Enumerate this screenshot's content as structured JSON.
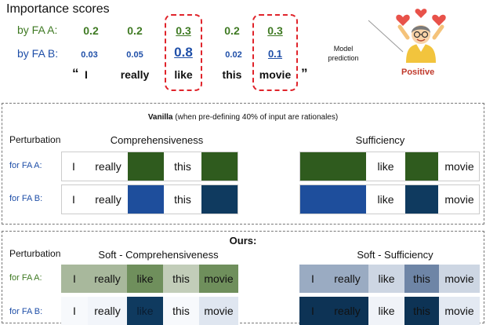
{
  "header": {
    "title": "Importance scores",
    "label_fa_a": "by FA  A:",
    "label_fa_b": "by FA  B:",
    "scores_a": [
      "0.2",
      "0.2",
      "0.3",
      "0.2",
      "0.3"
    ],
    "scores_b": [
      "0.03",
      "0.05",
      "0.8",
      "0.02",
      "0.1"
    ],
    "open_quote": "“",
    "close_quote": "”",
    "tokens": [
      "I",
      "really",
      "like",
      "this",
      "movie"
    ],
    "model_prediction": [
      "Model",
      "prediction"
    ],
    "positive": "Positive"
  },
  "vanilla": {
    "title": "Vanilla",
    "subtitle": "(when pre-defining 40% of input are rationales)",
    "perturbation": "Perturbation",
    "comprehensiveness": "Comprehensiveness",
    "sufficiency": "Sufficiency",
    "row_a": "for FA  A:",
    "row_b": "for FA  B:",
    "comp_a": [
      "I",
      "really",
      "",
      "this",
      ""
    ],
    "comp_b": [
      "I",
      "really",
      "",
      "this",
      ""
    ],
    "suff_a": [
      "",
      "like",
      "",
      "movie"
    ],
    "suff_b": [
      "",
      "like",
      "",
      "movie"
    ]
  },
  "ours": {
    "title": "Ours:",
    "perturbation": "Perturbation",
    "soft_comp": "Soft - Comprehensiveness",
    "soft_suff": "Soft - Sufficiency",
    "row_a": "for FA  A:",
    "row_b": "for FA  B:",
    "comp_a": [
      "I",
      "really",
      "like",
      "this",
      "movie"
    ],
    "comp_b": [
      "I",
      "really",
      "like",
      "this",
      "movie"
    ],
    "suff_a": [
      "I",
      "really",
      "like",
      "this",
      "movie"
    ],
    "suff_b": [
      "I",
      "really",
      "like",
      "this",
      "movie"
    ]
  },
  "colors": {
    "green_text": "#3f7a23",
    "blue_text": "#1f4fa8",
    "dark_green": "#2f5b1e",
    "dark_blue": "#0f3a5f",
    "mid_blue": "#1e4e9c",
    "red_dash": "#e0242b"
  }
}
